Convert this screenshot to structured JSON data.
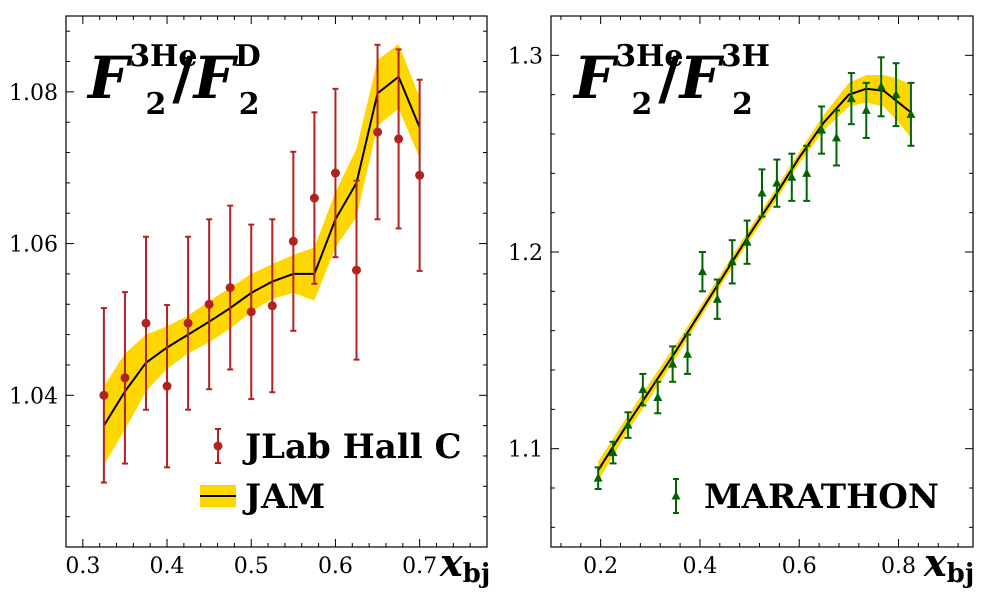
{
  "chart_data": [
    {
      "type": "line",
      "title": {
        "F": "F",
        "sub": "2",
        "num_sup": "3He",
        "den_sup": "D"
      },
      "xlabel": {
        "main": "x",
        "sub": "bj"
      },
      "xlim": [
        0.28,
        0.78
      ],
      "ylim": [
        1.02,
        1.09
      ],
      "xticks": [
        0.3,
        0.4,
        0.5,
        0.6,
        0.7
      ],
      "xtick_labels": [
        "0.3",
        "0.4",
        "0.5",
        "0.6",
        "0.7"
      ],
      "yticks": [
        1.04,
        1.06,
        1.08
      ],
      "ytick_labels": [
        "1.04",
        "1.06",
        "1.08"
      ],
      "legend": {
        "placement": "lower-right",
        "entries": [
          {
            "label": "JLab Hall C",
            "kind": "errorbar-circle"
          },
          {
            "label": "JAM",
            "kind": "band-line"
          }
        ]
      },
      "colors": {
        "band": "#FFD700",
        "line": "#000000",
        "points": "#B22222"
      },
      "series": [
        {
          "name": "JLab Hall C",
          "marker": "circle",
          "x": [
            0.325,
            0.35,
            0.375,
            0.4,
            0.425,
            0.45,
            0.475,
            0.5,
            0.525,
            0.55,
            0.575,
            0.6,
            0.625,
            0.65,
            0.675,
            0.7
          ],
          "y": [
            1.04,
            1.0423,
            1.0495,
            1.0412,
            1.0495,
            1.052,
            1.0542,
            1.051,
            1.0518,
            1.0603,
            1.066,
            1.0693,
            1.0565,
            1.0747,
            1.0738,
            1.069
          ],
          "err": [
            0.0115,
            0.0113,
            0.0114,
            0.0107,
            0.0114,
            0.0112,
            0.0108,
            0.0115,
            0.0114,
            0.0118,
            0.0113,
            0.0111,
            0.0118,
            0.0115,
            0.0118,
            0.0126
          ]
        },
        {
          "name": "JAM",
          "x": [
            0.325,
            0.35,
            0.375,
            0.4,
            0.425,
            0.45,
            0.475,
            0.5,
            0.525,
            0.55,
            0.575,
            0.6,
            0.625,
            0.65,
            0.675,
            0.7
          ],
          "y": [
            1.036,
            1.0405,
            1.0443,
            1.0463,
            1.048,
            1.0497,
            1.0515,
            1.0535,
            1.055,
            1.056,
            1.056,
            1.0632,
            1.068,
            1.0798,
            1.082,
            1.0753
          ],
          "band_lo": [
            1.0308,
            1.0355,
            1.0405,
            1.0435,
            1.0455,
            1.047,
            1.0488,
            1.051,
            1.0527,
            1.0535,
            1.0525,
            1.0595,
            1.0635,
            1.0755,
            1.0778,
            1.0713
          ],
          "band_hi": [
            1.0412,
            1.0455,
            1.048,
            1.0491,
            1.0505,
            1.0524,
            1.0542,
            1.056,
            1.0573,
            1.0585,
            1.0595,
            1.0668,
            1.0725,
            1.0842,
            1.0863,
            1.0793
          ]
        }
      ]
    },
    {
      "type": "line",
      "title": {
        "F": "F",
        "sub": "2",
        "num_sup": "3He",
        "den_sup": "3H"
      },
      "xlabel": {
        "main": "x",
        "sub": "bj"
      },
      "xlim": [
        0.1,
        0.95
      ],
      "ylim": [
        1.05,
        1.32
      ],
      "xticks": [
        0.2,
        0.4,
        0.6,
        0.8
      ],
      "xtick_labels": [
        "0.2",
        "0.4",
        "0.6",
        "0.8"
      ],
      "yticks": [
        1.1,
        1.2,
        1.3
      ],
      "ytick_labels": [
        "1.1",
        "1.2",
        "1.3"
      ],
      "legend": {
        "placement": "lower-right",
        "entries": [
          {
            "label": "MARATHON",
            "kind": "errorbar-triangle"
          }
        ]
      },
      "colors": {
        "band": "#FFD700",
        "line": "#000000",
        "points": "#006400"
      },
      "series": [
        {
          "name": "MARATHON",
          "marker": "triangle",
          "x": [
            0.195,
            0.225,
            0.255,
            0.285,
            0.315,
            0.345,
            0.375,
            0.405,
            0.435,
            0.465,
            0.495,
            0.525,
            0.555,
            0.585,
            0.615,
            0.645,
            0.675,
            0.705,
            0.735,
            0.765,
            0.795,
            0.825
          ],
          "y": [
            1.085,
            1.098,
            1.112,
            1.13,
            1.126,
            1.143,
            1.148,
            1.19,
            1.176,
            1.195,
            1.205,
            1.23,
            1.235,
            1.238,
            1.24,
            1.262,
            1.258,
            1.278,
            1.272,
            1.284,
            1.28,
            1.27
          ],
          "err": [
            0.0055,
            0.0055,
            0.0065,
            0.008,
            0.008,
            0.009,
            0.01,
            0.01,
            0.01,
            0.011,
            0.011,
            0.012,
            0.012,
            0.012,
            0.014,
            0.012,
            0.014,
            0.013,
            0.014,
            0.015,
            0.016,
            0.016
          ]
        },
        {
          "name": "JAM",
          "x": [
            0.195,
            0.25,
            0.3,
            0.35,
            0.4,
            0.45,
            0.5,
            0.55,
            0.6,
            0.65,
            0.7,
            0.735,
            0.77,
            0.8,
            0.825
          ],
          "y": [
            1.089,
            1.111,
            1.13,
            1.149,
            1.169,
            1.189,
            1.209,
            1.228,
            1.248,
            1.266,
            1.28,
            1.283,
            1.282,
            1.276,
            1.271
          ],
          "band_lo": [
            1.0835,
            1.107,
            1.126,
            1.1455,
            1.166,
            1.186,
            1.206,
            1.225,
            1.245,
            1.262,
            1.274,
            1.276,
            1.274,
            1.266,
            1.258
          ],
          "band_hi": [
            1.0935,
            1.115,
            1.134,
            1.1525,
            1.172,
            1.192,
            1.212,
            1.231,
            1.251,
            1.27,
            1.286,
            1.29,
            1.29,
            1.288,
            1.285
          ]
        }
      ]
    }
  ]
}
